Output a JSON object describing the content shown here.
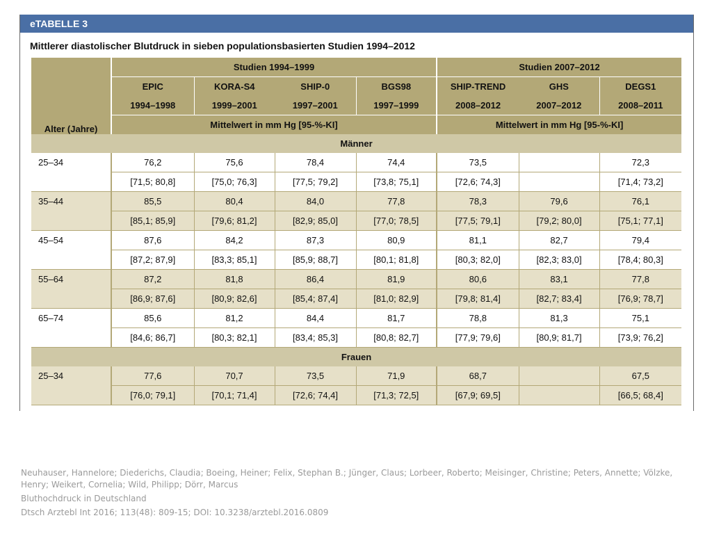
{
  "table": {
    "label": "eTABELLE 3",
    "title": "Mittlerer diastolischer Blutdruck in sieben populationsbasierten Studien 1994–2012",
    "age_header": "Alter (Jahre)",
    "groups": [
      {
        "label": "Studien 1994–1999",
        "unit": "Mittelwert in mm Hg [95-%-KI]"
      },
      {
        "label": "Studien 2007–2012",
        "unit": "Mittelwert in mm Hg [95-%-KI]"
      }
    ],
    "studies": [
      {
        "name": "EPIC",
        "years": "1994–1998"
      },
      {
        "name": "KORA-S4",
        "years": "1999–2001"
      },
      {
        "name": "SHIP-0",
        "years": "1997–2001"
      },
      {
        "name": "BGS98",
        "years": "1997–1999"
      },
      {
        "name": "SHIP-TREND",
        "years": "2008–2012"
      },
      {
        "name": "GHS",
        "years": "2007–2012"
      },
      {
        "name": "DEGS1",
        "years": "2008–2011"
      }
    ],
    "sections": [
      {
        "label": "Männer",
        "rows": [
          {
            "age": "25–34",
            "means": [
              "76,2",
              "75,6",
              "78,4",
              "74,4",
              "73,5",
              "",
              "72,3"
            ],
            "ci": [
              "[71,5; 80,8]",
              "[75,0; 76,3]",
              "[77,5; 79,2]",
              "[73,8; 75,1]",
              "[72,6; 74,3]",
              "",
              "[71,4; 73,2]"
            ]
          },
          {
            "age": "35–44",
            "means": [
              "85,5",
              "80,4",
              "84,0",
              "77,8",
              "78,3",
              "79,6",
              "76,1"
            ],
            "ci": [
              "[85,1; 85,9]",
              "[79,6; 81,2]",
              "[82,9; 85,0]",
              "[77,0; 78,5]",
              "[77,5; 79,1]",
              "[79,2; 80,0]",
              "[75,1; 77,1]"
            ]
          },
          {
            "age": "45–54",
            "means": [
              "87,6",
              "84,2",
              "87,3",
              "80,9",
              "81,1",
              "82,7",
              "79,4"
            ],
            "ci": [
              "[87,2; 87,9]",
              "[83,3; 85,1]",
              "[85,9; 88,7]",
              "[80,1; 81,8]",
              "[80,3; 82,0]",
              "[82,3; 83,0]",
              "[78,4; 80,3]"
            ]
          },
          {
            "age": "55–64",
            "means": [
              "87,2",
              "81,8",
              "86,4",
              "81,9",
              "80,6",
              "83,1",
              "77,8"
            ],
            "ci": [
              "[86,9; 87,6]",
              "[80,9; 82,6]",
              "[85,4; 87,4]",
              "[81,0; 82,9]",
              "[79,8; 81,4]",
              "[82,7; 83,4]",
              "[76,9; 78,7]"
            ]
          },
          {
            "age": "65–74",
            "means": [
              "85,6",
              "81,2",
              "84,4",
              "81,7",
              "78,8",
              "81,3",
              "75,1"
            ],
            "ci": [
              "[84,6; 86,7]",
              "[80,3; 82,1]",
              "[83,4; 85,3]",
              "[80,8; 82,7]",
              "[77,9; 79,6]",
              "[80,9; 81,7]",
              "[73,9; 76,2]"
            ]
          }
        ]
      },
      {
        "label": "Frauen",
        "rows": [
          {
            "age": "25–34",
            "means": [
              "77,6",
              "70,7",
              "73,5",
              "71,9",
              "68,7",
              "",
              "67,5"
            ],
            "ci": [
              "[76,0; 79,1]",
              "[70,1; 71,4]",
              "[72,6; 74,4]",
              "[71,3; 72,5]",
              "[67,9; 69,5]",
              "",
              "[66,5; 68,4]"
            ]
          }
        ]
      }
    ]
  },
  "citation": {
    "authors": "Neuhauser, Hannelore; Diederichs, Claudia; Boeing, Heiner; Felix, Stephan B.; Jünger, Claus; Lorbeer, Roberto; Meisinger, Christine; Peters, Annette; Völzke, Henry; Weikert, Cornelia; Wild, Philipp; Dörr, Marcus",
    "title": "Bluthochdruck in Deutschland",
    "journal": "Dtsch Arztebl Int 2016; 113(48): 809-15; DOI: 10.3238/arztebl.2016.0809"
  },
  "colors": {
    "title_bar": "#4a6fa5",
    "header": "#b3a877",
    "section": "#cfc8a6",
    "shaded_row": "#e6e0c8"
  }
}
